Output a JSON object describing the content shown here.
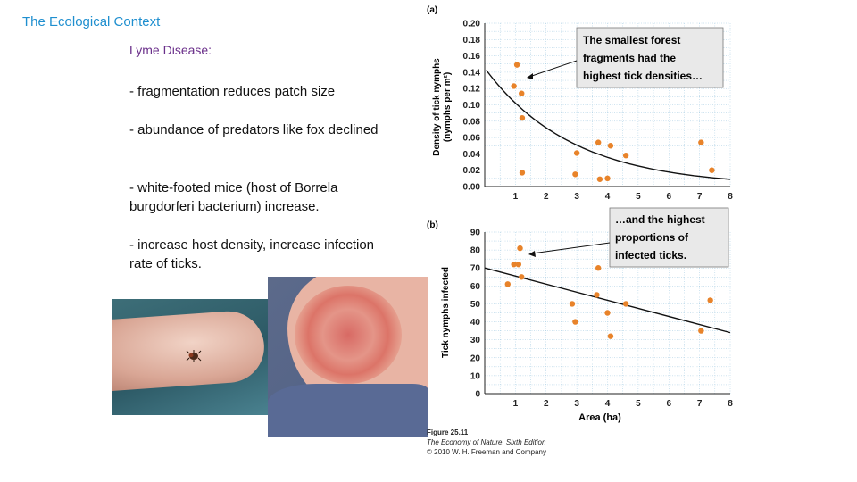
{
  "slide": {
    "title": "The Ecological Context",
    "subtitle": "Lyme Disease:",
    "bullets": [
      " - fragmentation reduces patch size",
      " - abundance of predators like fox declined",
      " - white-footed mice (host of Borrela burgdorferi bacterium) increase.",
      " - increase host density, increase infection rate of ticks."
    ]
  },
  "colors": {
    "title": "#1f8fcf",
    "subtitle": "#6a2f8a",
    "points": "#e8832a",
    "grid": "#9fc8e0"
  },
  "figure_credit": {
    "line1": "Figure 25.11",
    "line2": "The Economy of Nature, Sixth Edition",
    "line3": "© 2010 W. H. Freeman and Company"
  },
  "chart_data": [
    {
      "type": "scatter",
      "panel_label": "(a)",
      "ylabel_line1": "Density of tick nymphs",
      "ylabel_line2": "(nymphs per m²)",
      "xlabel": "",
      "xlim": [
        0,
        8
      ],
      "ylim": [
        0,
        0.2
      ],
      "xticks": [
        "1",
        "2",
        "3",
        "4",
        "5",
        "6",
        "7",
        "8"
      ],
      "yticks": [
        "0.00",
        "0.02",
        "0.04",
        "0.06",
        "0.08",
        "0.10",
        "0.12",
        "0.14",
        "0.16",
        "0.18",
        "0.20"
      ],
      "points": [
        {
          "x": 0.95,
          "y": 0.123
        },
        {
          "x": 1.05,
          "y": 0.149
        },
        {
          "x": 1.2,
          "y": 0.114
        },
        {
          "x": 1.22,
          "y": 0.084
        },
        {
          "x": 1.22,
          "y": 0.017
        },
        {
          "x": 2.95,
          "y": 0.015
        },
        {
          "x": 3.0,
          "y": 0.041
        },
        {
          "x": 3.7,
          "y": 0.054
        },
        {
          "x": 3.75,
          "y": 0.009
        },
        {
          "x": 4.0,
          "y": 0.01
        },
        {
          "x": 4.1,
          "y": 0.05
        },
        {
          "x": 4.6,
          "y": 0.038
        },
        {
          "x": 7.05,
          "y": 0.054
        },
        {
          "x": 7.4,
          "y": 0.02
        }
      ],
      "trend": "decay",
      "annotation": [
        "The smallest forest",
        "fragments had the",
        "highest tick densities…"
      ]
    },
    {
      "type": "scatter",
      "panel_label": "(b)",
      "ylabel": "Tick nymphs infected",
      "xlabel": "Area (ha)",
      "xlim": [
        0,
        8
      ],
      "ylim": [
        0,
        90
      ],
      "xticks": [
        "1",
        "2",
        "3",
        "4",
        "5",
        "6",
        "7",
        "8"
      ],
      "yticks": [
        "0",
        "10",
        "20",
        "30",
        "40",
        "50",
        "60",
        "70",
        "80",
        "90"
      ],
      "points": [
        {
          "x": 0.75,
          "y": 61
        },
        {
          "x": 0.95,
          "y": 72
        },
        {
          "x": 1.1,
          "y": 72
        },
        {
          "x": 1.15,
          "y": 81
        },
        {
          "x": 1.2,
          "y": 65
        },
        {
          "x": 2.85,
          "y": 50
        },
        {
          "x": 2.95,
          "y": 40
        },
        {
          "x": 3.65,
          "y": 55
        },
        {
          "x": 3.7,
          "y": 70
        },
        {
          "x": 4.0,
          "y": 45
        },
        {
          "x": 4.1,
          "y": 32
        },
        {
          "x": 4.6,
          "y": 50
        },
        {
          "x": 7.05,
          "y": 35
        },
        {
          "x": 7.35,
          "y": 52
        }
      ],
      "trend_line": {
        "x": [
          0,
          8
        ],
        "y": [
          70,
          34
        ]
      },
      "annotation": [
        "…and the highest",
        "proportions of",
        "infected ticks."
      ]
    }
  ]
}
